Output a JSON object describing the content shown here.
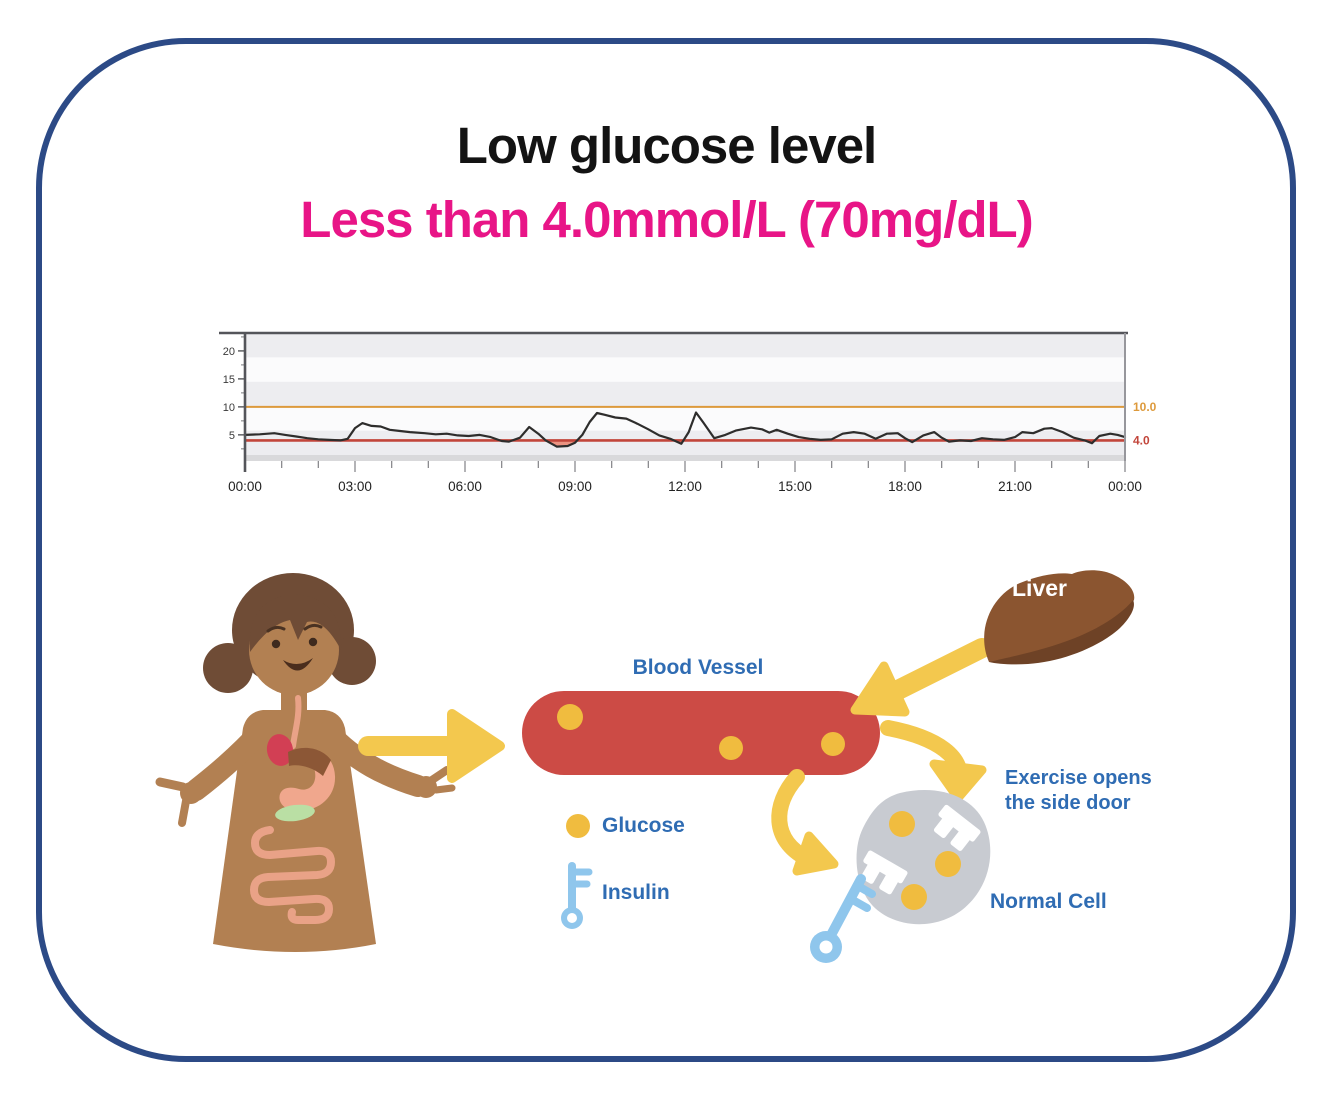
{
  "card": {
    "title": "Low glucose level",
    "subtitle": "Less than 4.0mmol/L (70mg/dL)",
    "title_color": "#131313",
    "subtitle_color": "#E81587",
    "border_color": "#2C4A86"
  },
  "chart_data": {
    "type": "line",
    "title": "",
    "xlabel": "",
    "ylabel": "",
    "x_unit": "time of day",
    "y_unit": "mmol/L",
    "x_tick_labels": [
      "00:00",
      "03:00",
      "06:00",
      "09:00",
      "12:00",
      "15:00",
      "18:00",
      "21:00",
      "00:00"
    ],
    "x_tick_hours": [
      0,
      3,
      6,
      9,
      12,
      15,
      18,
      21,
      24
    ],
    "y_ticks": [
      5,
      10,
      15,
      20
    ],
    "y_minor_ticks": [
      2.5,
      7.5,
      12.5,
      17.5,
      22.5
    ],
    "xlim_hours": [
      0,
      24
    ],
    "ylim_display": [
      1.4,
      23.2
    ],
    "grid": "horizontal-bands",
    "band_colors": [
      "#EDEDF0",
      "#FBFBFC"
    ],
    "legend_position": "none",
    "thresholds": [
      {
        "value": 10.0,
        "label": "10.0",
        "color": "#DD9A3C"
      },
      {
        "value": 4.0,
        "label": "4.0",
        "color": "#C2453A"
      }
    ],
    "hypo_threshold": 4.0,
    "hypo_fill_color": "#EB9381",
    "trace_color": "#2E2D2C",
    "series": [
      {
        "name": "glucose_mmol_L",
        "points": [
          [
            0,
            5.0
          ],
          [
            0.4,
            5.1
          ],
          [
            0.8,
            5.3
          ],
          [
            1.1,
            5.0
          ],
          [
            1.4,
            4.7
          ],
          [
            1.7,
            4.4
          ],
          [
            2.0,
            4.2
          ],
          [
            2.3,
            4.1
          ],
          [
            2.6,
            4.0
          ],
          [
            2.8,
            4.3
          ],
          [
            3.0,
            6.2
          ],
          [
            3.2,
            7.1
          ],
          [
            3.45,
            6.6
          ],
          [
            3.7,
            6.5
          ],
          [
            3.95,
            5.9
          ],
          [
            4.2,
            5.7
          ],
          [
            4.5,
            5.5
          ],
          [
            4.9,
            5.3
          ],
          [
            5.2,
            5.1
          ],
          [
            5.5,
            5.2
          ],
          [
            5.8,
            4.9
          ],
          [
            6.1,
            4.8
          ],
          [
            6.4,
            5.0
          ],
          [
            6.7,
            4.6
          ],
          [
            7.0,
            3.9
          ],
          [
            7.2,
            3.8
          ],
          [
            7.5,
            4.5
          ],
          [
            7.75,
            6.4
          ],
          [
            8.0,
            5.2
          ],
          [
            8.2,
            4.0
          ],
          [
            8.5,
            2.9
          ],
          [
            8.8,
            3.0
          ],
          [
            9.0,
            3.6
          ],
          [
            9.2,
            5.0
          ],
          [
            9.4,
            7.3
          ],
          [
            9.6,
            8.9
          ],
          [
            9.8,
            8.6
          ],
          [
            10.1,
            8.1
          ],
          [
            10.4,
            7.9
          ],
          [
            10.7,
            7.0
          ],
          [
            11.0,
            6.0
          ],
          [
            11.3,
            4.9
          ],
          [
            11.6,
            4.3
          ],
          [
            11.9,
            3.4
          ],
          [
            12.1,
            5.5
          ],
          [
            12.3,
            9.0
          ],
          [
            12.5,
            7.2
          ],
          [
            12.8,
            4.4
          ],
          [
            13.1,
            5.0
          ],
          [
            13.4,
            5.8
          ],
          [
            13.8,
            6.3
          ],
          [
            14.1,
            6.0
          ],
          [
            14.3,
            5.4
          ],
          [
            14.5,
            5.9
          ],
          [
            14.8,
            5.2
          ],
          [
            15.1,
            4.6
          ],
          [
            15.4,
            4.3
          ],
          [
            15.7,
            4.1
          ],
          [
            16.0,
            4.2
          ],
          [
            16.3,
            5.2
          ],
          [
            16.6,
            5.5
          ],
          [
            16.9,
            5.2
          ],
          [
            17.2,
            4.3
          ],
          [
            17.5,
            5.2
          ],
          [
            17.8,
            5.3
          ],
          [
            18.0,
            4.4
          ],
          [
            18.2,
            3.7
          ],
          [
            18.5,
            4.9
          ],
          [
            18.8,
            5.5
          ],
          [
            19.0,
            4.5
          ],
          [
            19.2,
            3.8
          ],
          [
            19.5,
            4.0
          ],
          [
            19.8,
            3.9
          ],
          [
            20.1,
            4.4
          ],
          [
            20.4,
            4.2
          ],
          [
            20.7,
            4.1
          ],
          [
            21.0,
            4.6
          ],
          [
            21.2,
            5.5
          ],
          [
            21.5,
            5.3
          ],
          [
            21.8,
            6.1
          ],
          [
            22.0,
            6.2
          ],
          [
            22.3,
            5.5
          ],
          [
            22.6,
            4.5
          ],
          [
            22.9,
            4.0
          ],
          [
            23.1,
            3.5
          ],
          [
            23.3,
            4.8
          ],
          [
            23.6,
            5.2
          ],
          [
            23.8,
            5.0
          ],
          [
            24,
            4.6
          ]
        ]
      }
    ]
  },
  "diagram": {
    "blood_vessel_label": "Blood Vessel",
    "liver_label": "Liver",
    "exercise_note_line1": "Exercise opens",
    "exercise_note_line2": "the side door",
    "normal_cell_label": "Normal Cell",
    "legend": {
      "glucose_label": "Glucose",
      "insulin_label": "Insulin"
    },
    "colors": {
      "arrow_yellow": "#F3C84E",
      "glucose_dot_yellow": "#F0BC3F",
      "vessel_red": "#CC4B45",
      "liver_brown": "#8B5530",
      "liver_shadow_brown": "#6E4226",
      "cell_gray": "#C8CBD1",
      "insulin_key_blue": "#8FC6EC",
      "label_blue": "#2F6CB3"
    }
  }
}
